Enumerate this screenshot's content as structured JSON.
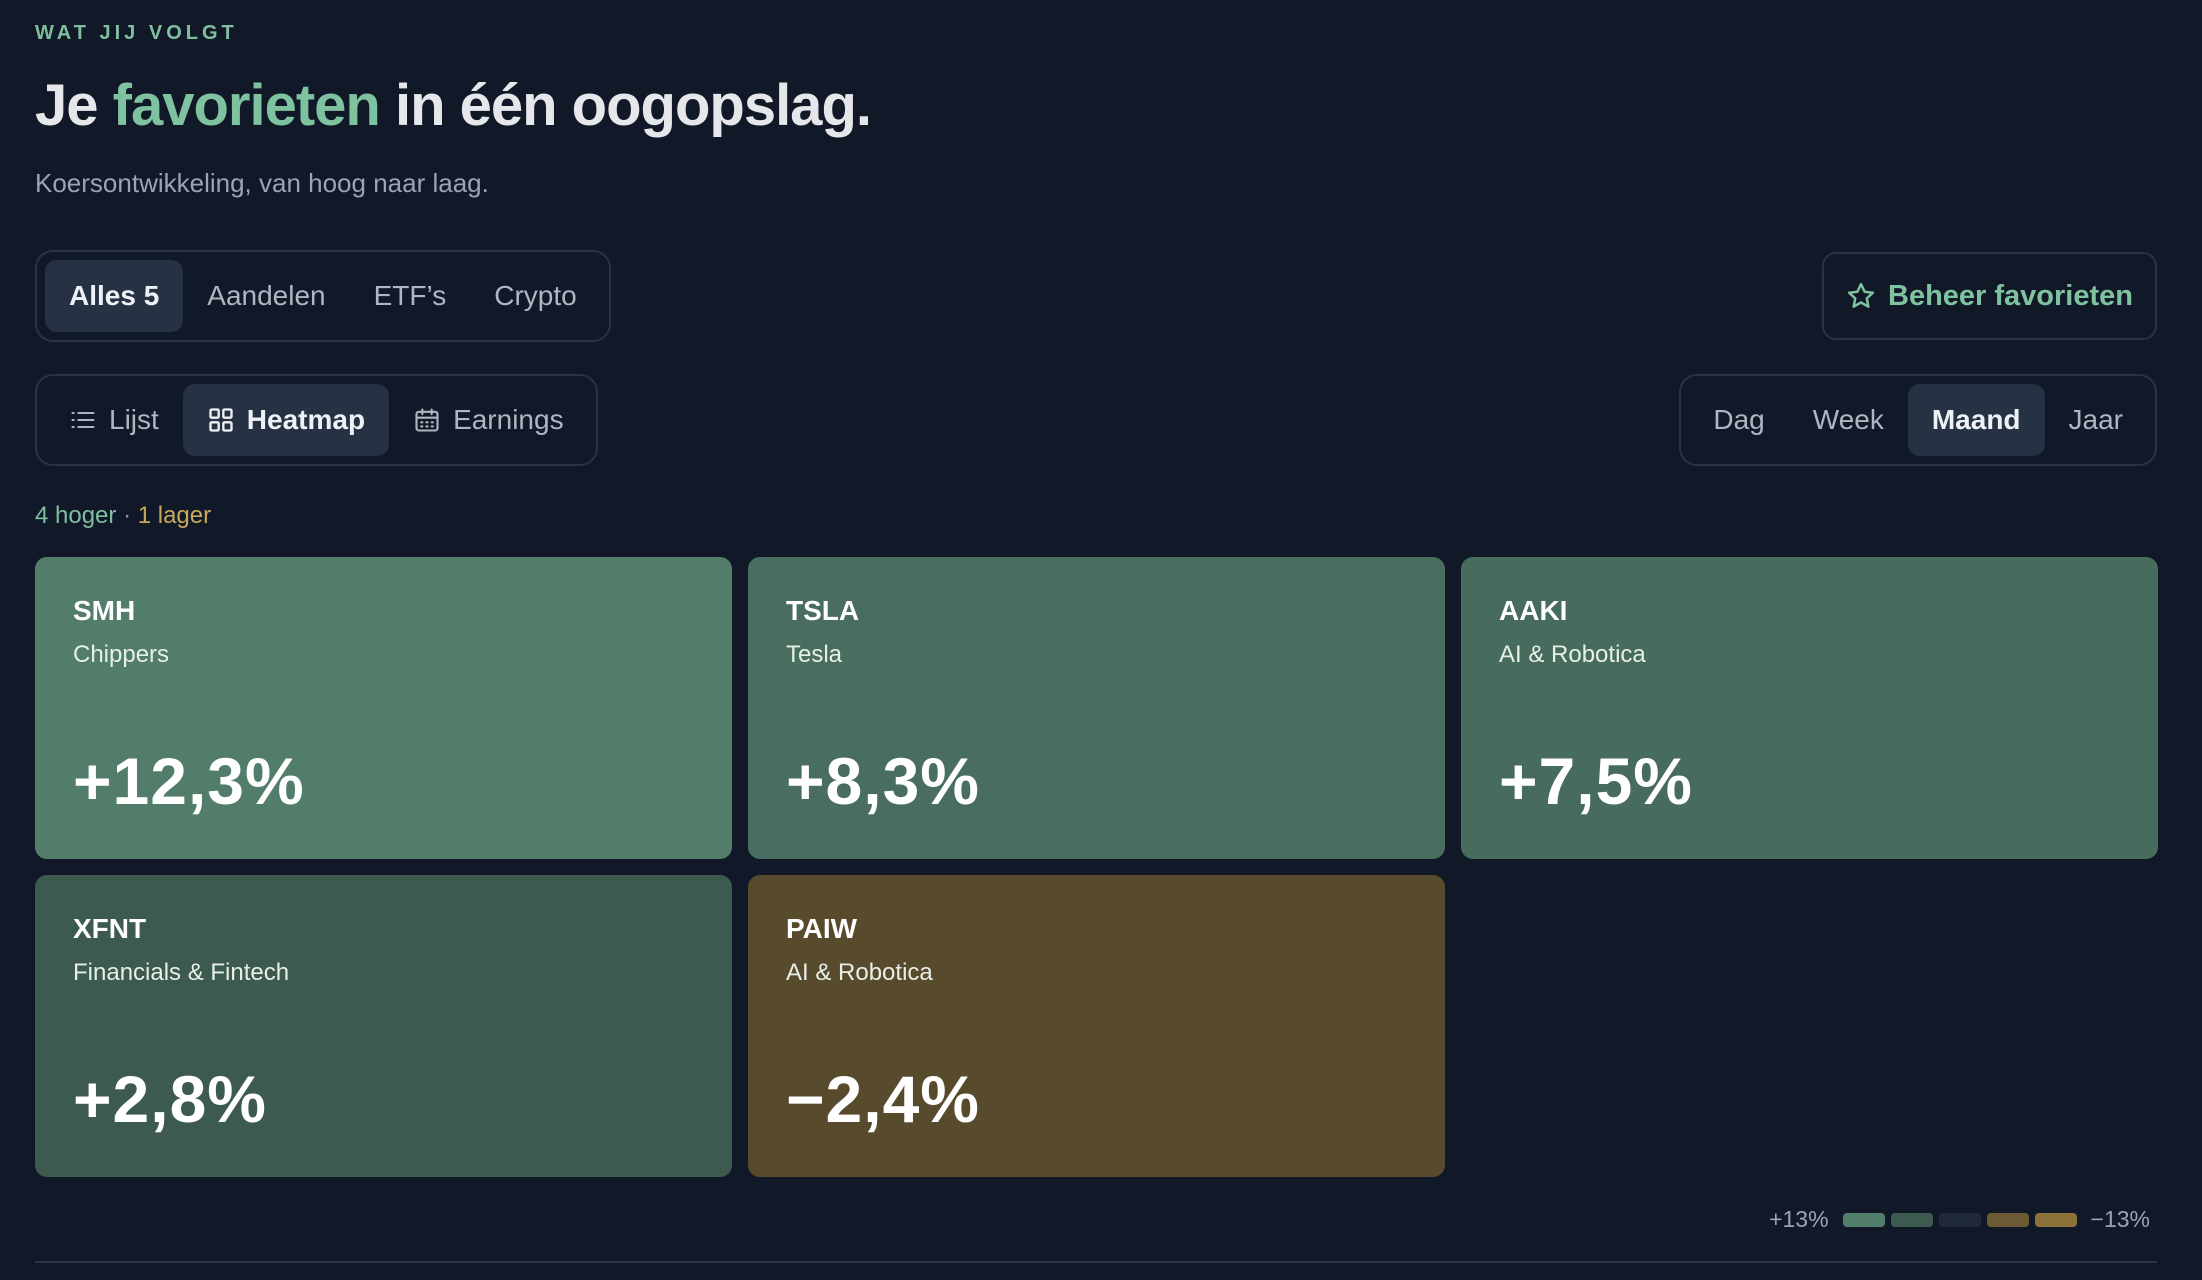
{
  "header": {
    "eyebrow": "WAT JIJ VOLGT",
    "title_before": "Je ",
    "title_accent": "favorieten",
    "title_after": " in één oogopslag.",
    "subtitle": "Koersontwikkeling, van hoog naar laag."
  },
  "filters": [
    {
      "label": "Alles 5",
      "active": true
    },
    {
      "label": "Aandelen",
      "active": false
    },
    {
      "label": "ETF’s",
      "active": false
    },
    {
      "label": "Crypto",
      "active": false
    }
  ],
  "manage_button": {
    "label": "Beheer favorieten",
    "icon": "star-icon"
  },
  "views": [
    {
      "label": "Lijst",
      "icon": "list-icon",
      "active": false
    },
    {
      "label": "Heatmap",
      "icon": "grid-icon",
      "active": true
    },
    {
      "label": "Earnings",
      "icon": "calendar-icon",
      "active": false
    }
  ],
  "periods": [
    {
      "label": "Dag",
      "active": false
    },
    {
      "label": "Week",
      "active": false
    },
    {
      "label": "Maand",
      "active": true
    },
    {
      "label": "Jaar",
      "active": false
    }
  ],
  "summary": {
    "up": "4 hoger",
    "sep": " · ",
    "down": "1 lager"
  },
  "tiles": [
    {
      "symbol": "SMH",
      "name": "Chippers",
      "change": "+12,3%",
      "color": "#527d6a"
    },
    {
      "symbol": "TSLA",
      "name": "Tesla",
      "change": "+8,3%",
      "color": "#496d5e"
    },
    {
      "symbol": "AAKI",
      "name": "AI & Robotica",
      "change": "+7,5%",
      "color": "#476b5c"
    },
    {
      "symbol": "XFNT",
      "name": "Financials & Fintech",
      "change": "+2,8%",
      "color": "#3d5a4f"
    },
    {
      "symbol": "PAIW",
      "name": "AI & Robotica",
      "change": "−2,4%",
      "color": "#584a2c"
    }
  ],
  "legend": {
    "high": "+13%",
    "low": "−13%",
    "swatches": [
      "#527d6a",
      "#3d5a4f",
      "#1f2937",
      "#6b5a33",
      "#8a7238"
    ]
  }
}
